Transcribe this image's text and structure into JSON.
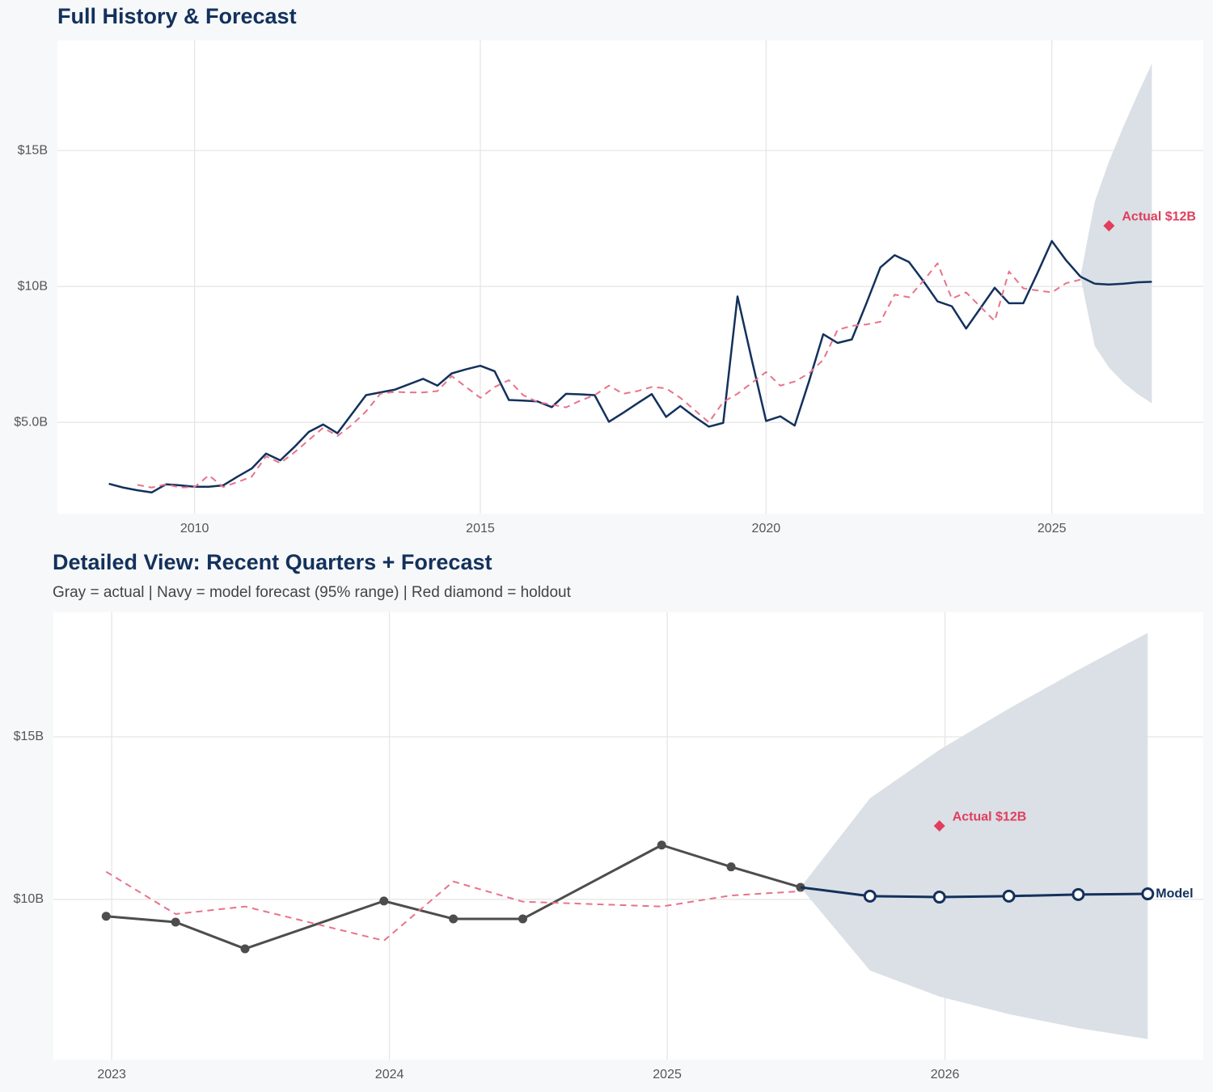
{
  "chart_data": [
    {
      "type": "line",
      "title": "Full History & Forecast",
      "xlim": [
        2007.6,
        2027.65
      ],
      "xticks": [
        2010,
        2015,
        2020,
        2025
      ],
      "ylim": [
        1.64,
        19.05
      ],
      "yticks": [
        {
          "value": 5,
          "label": "$5.0B"
        },
        {
          "value": 10,
          "label": "$10B"
        },
        {
          "value": 15,
          "label": "$15B"
        }
      ],
      "grid": true,
      "series": [
        {
          "color": "#13315c",
          "style": "solid",
          "x": [
            2008.5,
            2008.75,
            2009,
            2009.25,
            2009.5,
            2009.75,
            2010,
            2010.25,
            2010.5,
            2010.75,
            2011,
            2011.25,
            2011.5,
            2011.75,
            2012,
            2012.25,
            2012.5,
            2012.75,
            2013,
            2013.25,
            2013.5,
            2013.75,
            2014,
            2014.25,
            2014.5,
            2014.75,
            2015,
            2015.25,
            2015.5,
            2015.75,
            2016,
            2016.25,
            2016.5,
            2016.75,
            2017,
            2017.25,
            2017.5,
            2017.75,
            2018,
            2018.25,
            2018.5,
            2018.75,
            2019,
            2019.25,
            2019.5,
            2019.75,
            2020,
            2020.25,
            2020.5,
            2020.75,
            2021,
            2021.25,
            2021.5,
            2021.75,
            2022,
            2022.25,
            2022.5,
            2022.75,
            2023,
            2023.25,
            2023.5,
            2023.75,
            2024,
            2024.25,
            2024.5,
            2024.75,
            2025,
            2025.25,
            2025.5
          ],
          "values": [
            2.74,
            2.6,
            2.5,
            2.42,
            2.72,
            2.68,
            2.63,
            2.63,
            2.68,
            3.0,
            3.3,
            3.85,
            3.6,
            4.1,
            4.65,
            4.92,
            4.6,
            5.3,
            6.0,
            6.1,
            6.2,
            6.4,
            6.6,
            6.35,
            6.8,
            6.95,
            7.08,
            6.88,
            5.82,
            5.8,
            5.77,
            5.56,
            6.05,
            6.03,
            6.0,
            5.02,
            5.35,
            5.7,
            6.04,
            5.2,
            5.6,
            5.2,
            4.84,
            4.98,
            9.63,
            7.3,
            5.05,
            5.22,
            4.88,
            6.5,
            8.24,
            7.92,
            8.05,
            9.35,
            10.7,
            11.15,
            10.9,
            10.2,
            9.45,
            9.27,
            8.45,
            9.2,
            9.95,
            9.38,
            9.38,
            10.5,
            11.67,
            10.96,
            10.36
          ]
        },
        {
          "color": "#e8738a",
          "style": "dashed",
          "x": [
            2009,
            2009.25,
            2009.5,
            2009.75,
            2010,
            2010.25,
            2010.5,
            2010.75,
            2011,
            2011.25,
            2011.5,
            2011.75,
            2012,
            2012.25,
            2012.5,
            2012.75,
            2013,
            2013.25,
            2013.5,
            2013.75,
            2014,
            2014.25,
            2014.5,
            2014.75,
            2015,
            2015.25,
            2015.5,
            2015.75,
            2016,
            2016.25,
            2016.5,
            2016.75,
            2017,
            2017.25,
            2017.5,
            2017.75,
            2018,
            2018.25,
            2018.5,
            2018.75,
            2019,
            2019.25,
            2019.5,
            2019.75,
            2020,
            2020.25,
            2020.5,
            2020.75,
            2021,
            2021.25,
            2021.5,
            2021.75,
            2022,
            2022.25,
            2022.5,
            2022.75,
            2023,
            2023.25,
            2023.5,
            2023.75,
            2024,
            2024.25,
            2024.5,
            2024.75,
            2025,
            2025.25,
            2025.5
          ],
          "values": [
            2.7,
            2.6,
            2.72,
            2.6,
            2.62,
            3.05,
            2.62,
            2.8,
            3.0,
            3.75,
            3.5,
            3.9,
            4.35,
            4.8,
            4.5,
            4.9,
            5.4,
            6.05,
            6.12,
            6.1,
            6.1,
            6.15,
            6.7,
            6.3,
            5.9,
            6.3,
            6.55,
            6.0,
            5.75,
            5.65,
            5.55,
            5.8,
            6.0,
            6.35,
            6.05,
            6.15,
            6.3,
            6.25,
            5.9,
            5.45,
            5.0,
            5.75,
            6.05,
            6.45,
            6.85,
            6.35,
            6.5,
            6.8,
            7.3,
            8.4,
            8.55,
            8.6,
            8.7,
            9.7,
            9.6,
            10.2,
            10.85,
            9.55,
            9.78,
            9.25,
            8.73,
            10.55,
            9.93,
            9.85,
            9.78,
            10.12,
            10.25
          ]
        },
        {
          "color": "#13315c",
          "style": "solid",
          "continues": 0,
          "x": [
            2025.75,
            2026,
            2026.25,
            2026.5,
            2026.75
          ],
          "values": [
            10.1,
            10.07,
            10.1,
            10.15,
            10.17
          ]
        }
      ],
      "band": {
        "color": "#d9dee5",
        "x": [
          2025.5,
          2025.75,
          2026,
          2026.25,
          2026.5,
          2026.75
        ],
        "lower": [
          10.36,
          7.81,
          7.01,
          6.47,
          6.04,
          5.7
        ],
        "upper": [
          10.36,
          13.11,
          14.6,
          15.87,
          17.06,
          18.2
        ]
      },
      "holdout": {
        "x": 2026,
        "value": 12.23,
        "label": "Actual $12B",
        "color": "#e03e5c"
      }
    },
    {
      "type": "line",
      "title": "Detailed View: Recent Quarters + Forecast",
      "subtitle": "Gray = actual  |  Navy = model forecast (95% range)  |  Red diamond = holdout",
      "xlim": [
        2022.79,
        2026.93
      ],
      "xticks": [
        2023,
        2024,
        2025,
        2026
      ],
      "ylim": [
        5.07,
        18.83
      ],
      "yticks": [
        {
          "value": 10,
          "label": "$10B"
        },
        {
          "value": 15,
          "label": "$15B"
        }
      ],
      "grid": true,
      "series": [
        {
          "color": "#4d4d4d",
          "style": "solid",
          "marker": "filled",
          "x": [
            2022.98,
            2023.23,
            2023.48,
            2023.98,
            2024.23,
            2024.48,
            2024.98,
            2025.23,
            2025.48
          ],
          "values": [
            9.48,
            9.3,
            8.48,
            9.95,
            9.4,
            9.4,
            11.67,
            11.0,
            10.37
          ]
        },
        {
          "color": "#e8738a",
          "style": "dashed",
          "x": [
            2022.98,
            2023.23,
            2023.48,
            2023.98,
            2024.23,
            2024.48,
            2024.98,
            2025.23,
            2025.48
          ],
          "values": [
            10.85,
            9.55,
            9.78,
            8.73,
            10.55,
            9.93,
            9.78,
            10.12,
            10.25
          ]
        },
        {
          "name": "Model",
          "color": "#13315c",
          "style": "solid",
          "marker": "open",
          "continues": 0,
          "x": [
            2025.73,
            2025.98,
            2026.23,
            2026.48,
            2026.73
          ],
          "values": [
            10.1,
            10.07,
            10.1,
            10.15,
            10.17
          ]
        }
      ],
      "band": {
        "color": "#d9dee5",
        "x": [
          2025.48,
          2025.73,
          2025.98,
          2026.23,
          2026.48,
          2026.73
        ],
        "lower": [
          10.37,
          7.81,
          7.01,
          6.47,
          6.04,
          5.7
        ],
        "upper": [
          10.37,
          13.11,
          14.6,
          15.87,
          17.06,
          18.2
        ]
      },
      "holdout": {
        "x": 2025.98,
        "value": 12.26,
        "label": "Actual $12B",
        "color": "#e03e5c"
      }
    }
  ]
}
